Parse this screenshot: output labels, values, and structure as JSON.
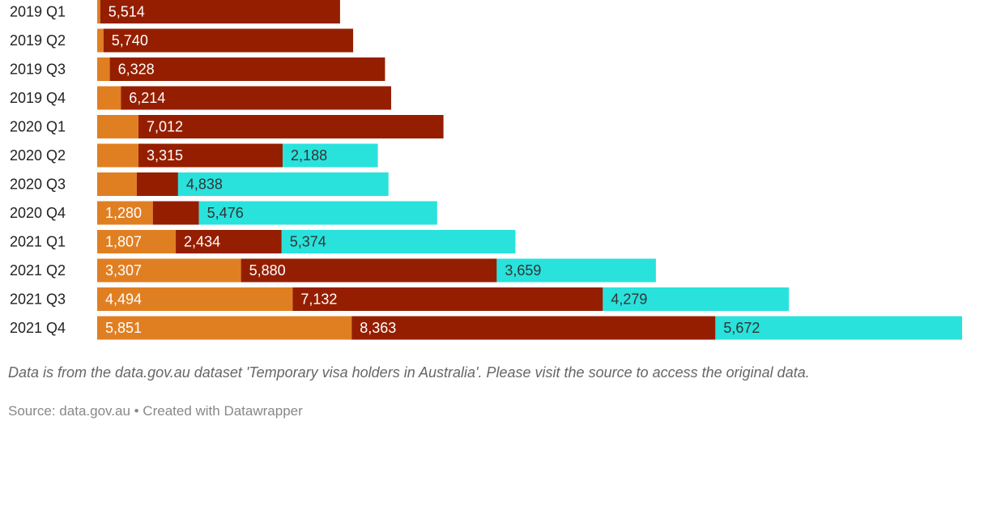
{
  "chart_data": {
    "type": "bar",
    "orientation": "horizontal",
    "stacked": true,
    "categories": [
      "2019 Q1",
      "2019 Q2",
      "2019 Q3",
      "2019 Q4",
      "2020 Q1",
      "2020 Q2",
      "2020 Q3",
      "2020 Q4",
      "2021 Q1",
      "2021 Q2",
      "2021 Q3",
      "2021 Q4"
    ],
    "series": [
      {
        "color": "#e07f22",
        "values": [
          70,
          145,
          290,
          545,
          950,
          950,
          910,
          1280,
          1807,
          3307,
          4494,
          5851
        ]
      },
      {
        "color": "#951e00",
        "values": [
          5514,
          5740,
          6328,
          6214,
          7012,
          3315,
          950,
          1060,
          2434,
          5880,
          7132,
          8363
        ]
      },
      {
        "color": "#29e2dc",
        "values": [
          0,
          0,
          0,
          0,
          0,
          2188,
          4838,
          5476,
          5374,
          3659,
          4279,
          5672
        ]
      }
    ],
    "xlim": [
      0,
      19886
    ],
    "grid": false,
    "legend": "none"
  },
  "footer": {
    "note": "Data is from the data.gov.au dataset 'Temporary visa holders in Australia'. Please visit the source to access the original data.",
    "source": "Source: data.gov.au • Created with Datawrapper"
  }
}
